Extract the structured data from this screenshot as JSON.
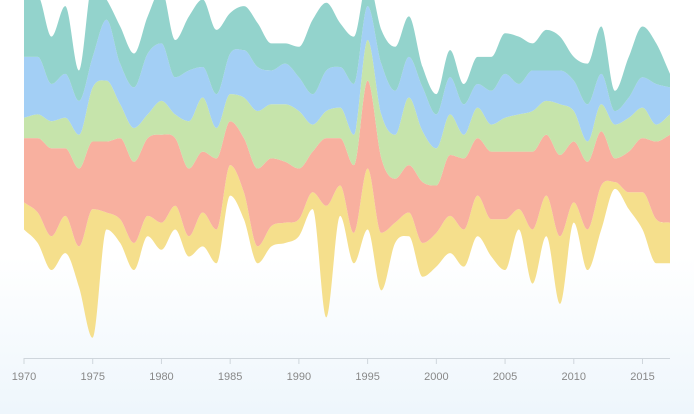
{
  "chart_data": {
    "type": "area",
    "subtype": "streamgraph",
    "title": "",
    "xlabel": "",
    "ylabel": "",
    "xlim": [
      1970,
      2017
    ],
    "x_ticks": [
      1970,
      1975,
      1980,
      1985,
      1990,
      1995,
      2000,
      2005,
      2010,
      2015
    ],
    "x_tick_labels": [
      "1970",
      "1975",
      "1980",
      "1985",
      "1990",
      "1995",
      "2000",
      "2005",
      "2010",
      "2015"
    ],
    "ylim": [
      -54,
      40
    ],
    "grid": false,
    "legend": "none",
    "x": [
      1970,
      1971,
      1972,
      1973,
      1974,
      1975,
      1976,
      1977,
      1978,
      1979,
      1980,
      1981,
      1982,
      1983,
      1984,
      1985,
      1986,
      1987,
      1988,
      1989,
      1990,
      1991,
      1992,
      1993,
      1994,
      1995,
      1996,
      1997,
      1998,
      1999,
      2000,
      2001,
      2002,
      2003,
      2004,
      2005,
      2006,
      2007,
      2008,
      2009,
      2010,
      2011,
      2012,
      2013,
      2014,
      2015,
      2016,
      2017
    ],
    "baseline": [
      -16,
      -20,
      -28,
      -23,
      -33,
      -48,
      -16,
      -20,
      -28,
      -18,
      -22,
      -16,
      -24,
      -21,
      -26,
      -6,
      -13,
      -26,
      -21,
      -20,
      -18,
      -10,
      -42,
      -12,
      -26,
      -16,
      -34,
      -20,
      -18,
      -30,
      -27,
      -23,
      -27,
      -18,
      -24,
      -28,
      -16,
      -32,
      -18,
      -38,
      -14,
      -28,
      -16,
      -4,
      -10,
      -16,
      -26,
      -26
    ],
    "series": [
      {
        "color": "#f5df8c",
        "values": [
          8,
          9,
          10,
          11,
          12,
          38,
          5,
          7,
          8,
          6,
          8,
          7,
          6,
          10,
          10,
          9,
          8,
          5,
          6,
          6,
          5,
          5,
          33,
          9,
          9,
          18,
          17,
          6,
          7,
          10,
          10,
          11,
          11,
          12,
          11,
          15,
          6,
          16,
          12,
          20,
          6,
          12,
          13,
          2,
          5,
          11,
          13,
          12
        ]
      },
      {
        "color": "#f8b09f",
        "values": [
          19,
          22,
          26,
          20,
          23,
          20,
          21,
          24,
          24,
          23,
          26,
          20,
          20,
          18,
          21,
          13,
          16,
          23,
          20,
          18,
          15,
          12,
          20,
          14,
          20,
          26,
          22,
          13,
          14,
          18,
          14,
          18,
          21,
          17,
          20,
          20,
          17,
          23,
          18,
          24,
          18,
          20,
          16,
          7,
          12,
          16,
          23,
          26
        ]
      },
      {
        "color": "#c6e4ab",
        "values": [
          6,
          7,
          8,
          9,
          10,
          16,
          18,
          10,
          10,
          7,
          10,
          7,
          14,
          16,
          9,
          8,
          12,
          17,
          16,
          17,
          17,
          8,
          8,
          9,
          9,
          12,
          13,
          13,
          20,
          15,
          11,
          12,
          7,
          9,
          8,
          10,
          11,
          12,
          10,
          15,
          9,
          6,
          8,
          10,
          10,
          9,
          5,
          6
        ]
      },
      {
        "color": "#a3cff5",
        "values": [
          18,
          17,
          11,
          13,
          10,
          9,
          18,
          12,
          12,
          18,
          17,
          11,
          15,
          9,
          10,
          12,
          14,
          13,
          10,
          12,
          10,
          9,
          12,
          12,
          15,
          10,
          15,
          13,
          12,
          13,
          10,
          11,
          9,
          7,
          10,
          13,
          9,
          12,
          9,
          10,
          9,
          11,
          9,
          4,
          6,
          9,
          12,
          8
        ]
      },
      {
        "color": "#93d3cc",
        "values": [
          17,
          18,
          14,
          20,
          9,
          22,
          6,
          11,
          10,
          11,
          16,
          11,
          16,
          20,
          19,
          12,
          13,
          13,
          8,
          6,
          9,
          22,
          20,
          13,
          14,
          8,
          10,
          13,
          12,
          6,
          6,
          8,
          6,
          8,
          10,
          12,
          14,
          8,
          12,
          10,
          7,
          12,
          14,
          6,
          12,
          15,
          12,
          4
        ]
      }
    ]
  }
}
